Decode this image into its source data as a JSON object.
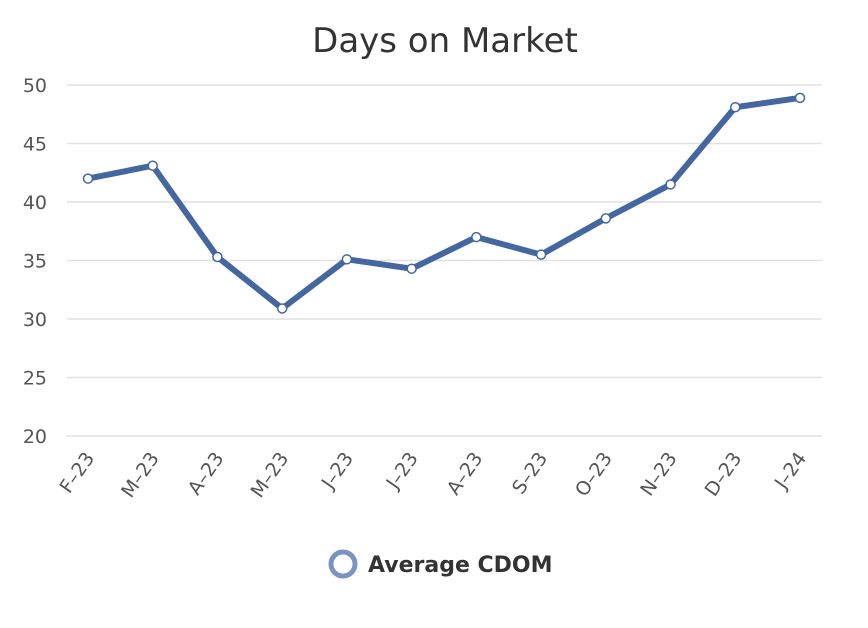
{
  "chart_data": {
    "type": "line",
    "title": "Days on Market",
    "categories": [
      "F–23",
      "M–23",
      "A–23",
      "M–23",
      "J–23",
      "J–23",
      "A–23",
      "S–23",
      "O–23",
      "N–23",
      "D–23",
      "J–24"
    ],
    "series": [
      {
        "name": "Average CDOM",
        "values": [
          42.0,
          43.1,
          35.3,
          30.9,
          35.1,
          34.3,
          37.0,
          35.5,
          38.6,
          41.5,
          48.1,
          48.9
        ]
      }
    ],
    "yticks": [
      "20",
      "25",
      "30",
      "35",
      "40",
      "45",
      "50"
    ],
    "ylim": [
      20,
      50
    ],
    "grid": true,
    "legend": "bottom-center",
    "colors": {
      "line": "#44679f",
      "marker_fill": "#ffffff",
      "gridline": "#e1e1e1"
    }
  }
}
